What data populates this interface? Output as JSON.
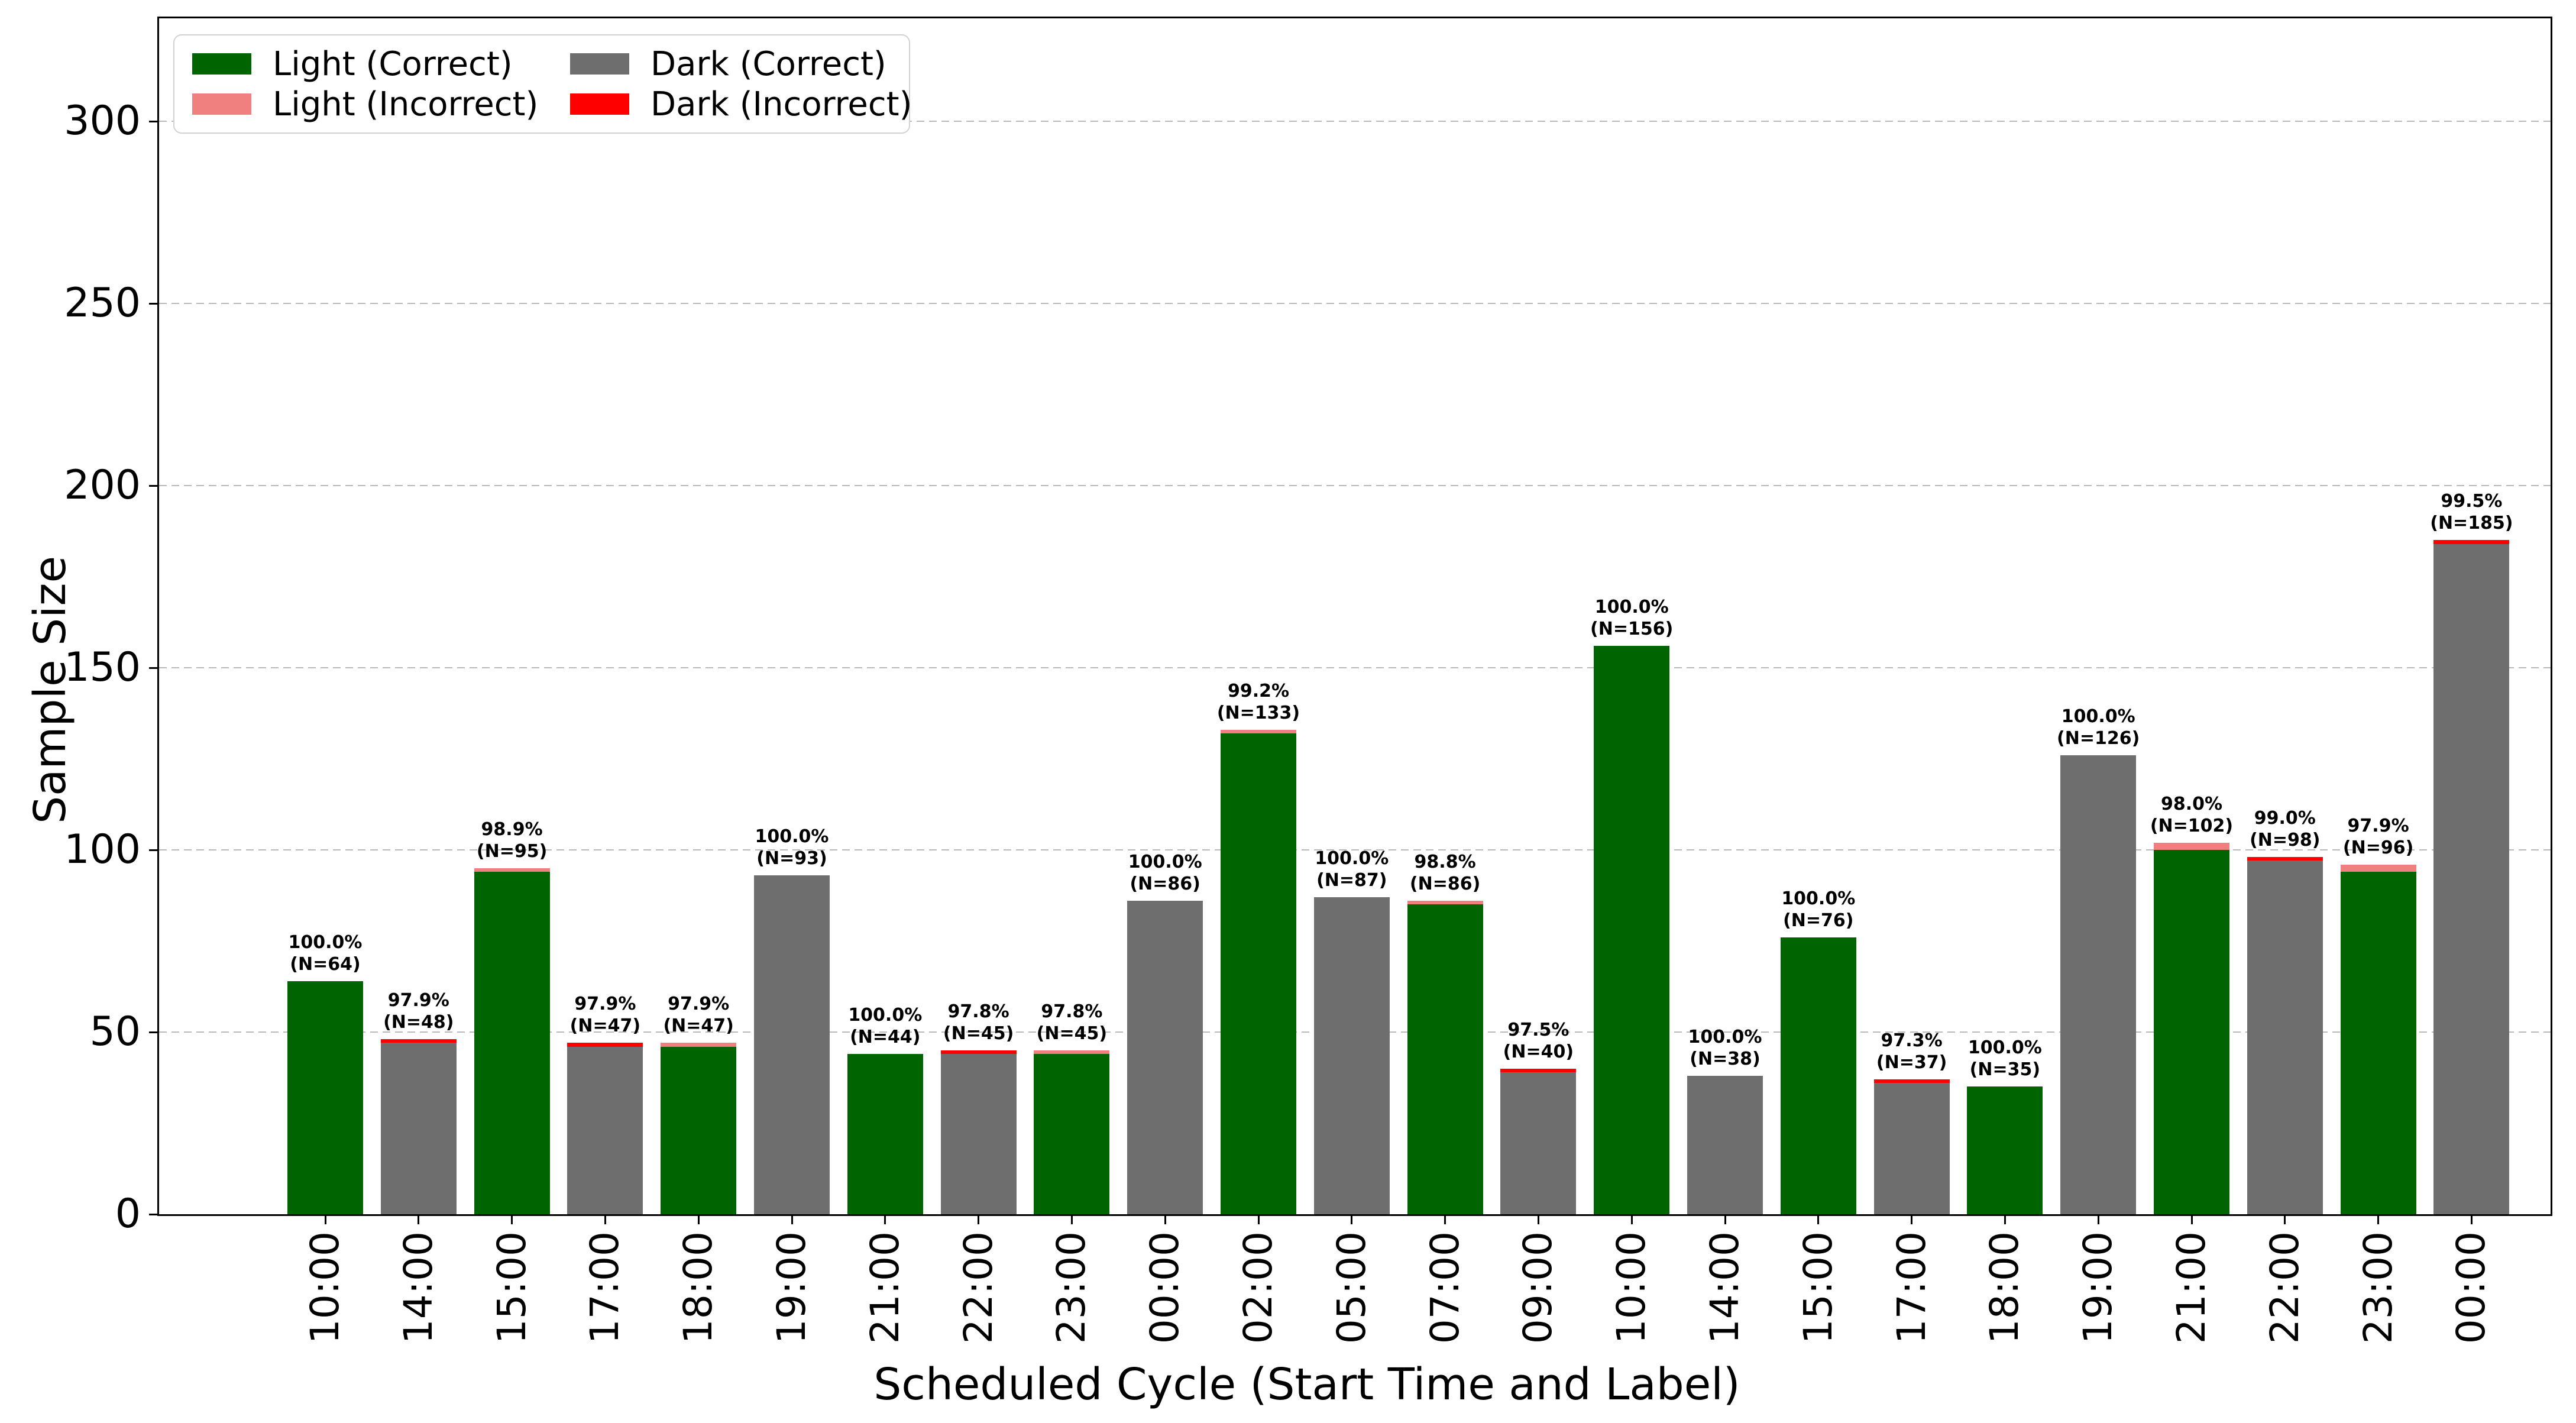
{
  "figure": {
    "xlabel": "Scheduled Cycle (Start Time and Label)",
    "ylabel": "Sample Size",
    "background": "#ffffff"
  },
  "legend": {
    "items": [
      {
        "label": "Light (Correct)",
        "color": "#006400"
      },
      {
        "label": "Light (Incorrect)",
        "color": "#f08080"
      },
      {
        "label": "Dark (Correct)",
        "color": "#6e6e6e"
      },
      {
        "label": "Dark (Incorrect)",
        "color": "#ff0000"
      }
    ]
  },
  "chart_data": {
    "type": "bar",
    "stacked": true,
    "title": "",
    "xlabel": "Scheduled Cycle (Start Time and Label)",
    "ylabel": "Sample Size",
    "ylim": [
      0,
      328
    ],
    "yticks": [
      0,
      50,
      100,
      150,
      200,
      250,
      300
    ],
    "grid": "horizontal-dashed",
    "legend_position": "upper-left",
    "colors": {
      "light_correct": "#006400",
      "light_incorrect": "#f08080",
      "dark_correct": "#6e6e6e",
      "dark_incorrect": "#ff0000",
      "gridline": "#b9b9b9"
    },
    "categories": [
      "10:00",
      "14:00",
      "15:00",
      "17:00",
      "18:00",
      "19:00",
      "21:00",
      "22:00",
      "23:00",
      "00:00",
      "02:00",
      "05:00",
      "07:00",
      "09:00",
      "10:00",
      "14:00",
      "15:00",
      "17:00",
      "18:00",
      "19:00",
      "21:00",
      "22:00",
      "23:00",
      "00:00"
    ],
    "bars": [
      {
        "time": "10:00",
        "theme": "light",
        "total": 64,
        "correct": 64,
        "incorrect": 0,
        "pct_label": "100.0%",
        "n_label": "(N=64)"
      },
      {
        "time": "14:00",
        "theme": "dark",
        "total": 48,
        "correct": 47,
        "incorrect": 1,
        "pct_label": "97.9%",
        "n_label": "(N=48)"
      },
      {
        "time": "15:00",
        "theme": "light",
        "total": 95,
        "correct": 94,
        "incorrect": 1,
        "pct_label": "98.9%",
        "n_label": "(N=95)"
      },
      {
        "time": "17:00",
        "theme": "dark",
        "total": 47,
        "correct": 46,
        "incorrect": 1,
        "pct_label": "97.9%",
        "n_label": "(N=47)"
      },
      {
        "time": "18:00",
        "theme": "light",
        "total": 47,
        "correct": 46,
        "incorrect": 1,
        "pct_label": "97.9%",
        "n_label": "(N=47)"
      },
      {
        "time": "19:00",
        "theme": "dark",
        "total": 93,
        "correct": 93,
        "incorrect": 0,
        "pct_label": "100.0%",
        "n_label": "(N=93)"
      },
      {
        "time": "21:00",
        "theme": "light",
        "total": 44,
        "correct": 44,
        "incorrect": 0,
        "pct_label": "100.0%",
        "n_label": "(N=44)"
      },
      {
        "time": "22:00",
        "theme": "dark",
        "total": 45,
        "correct": 44,
        "incorrect": 1,
        "pct_label": "97.8%",
        "n_label": "(N=45)"
      },
      {
        "time": "23:00",
        "theme": "light",
        "total": 45,
        "correct": 44,
        "incorrect": 1,
        "pct_label": "97.8%",
        "n_label": "(N=45)"
      },
      {
        "time": "00:00",
        "theme": "dark",
        "total": 86,
        "correct": 86,
        "incorrect": 0,
        "pct_label": "100.0%",
        "n_label": "(N=86)"
      },
      {
        "time": "02:00",
        "theme": "light",
        "total": 133,
        "correct": 132,
        "incorrect": 1,
        "pct_label": "99.2%",
        "n_label": "(N=133)"
      },
      {
        "time": "05:00",
        "theme": "dark",
        "total": 87,
        "correct": 87,
        "incorrect": 0,
        "pct_label": "100.0%",
        "n_label": "(N=87)"
      },
      {
        "time": "07:00",
        "theme": "light",
        "total": 86,
        "correct": 85,
        "incorrect": 1,
        "pct_label": "98.8%",
        "n_label": "(N=86)"
      },
      {
        "time": "09:00",
        "theme": "dark",
        "total": 40,
        "correct": 39,
        "incorrect": 1,
        "pct_label": "97.5%",
        "n_label": "(N=40)"
      },
      {
        "time": "10:00",
        "theme": "light",
        "total": 156,
        "correct": 156,
        "incorrect": 0,
        "pct_label": "100.0%",
        "n_label": "(N=156)"
      },
      {
        "time": "14:00",
        "theme": "dark",
        "total": 38,
        "correct": 38,
        "incorrect": 0,
        "pct_label": "100.0%",
        "n_label": "(N=38)"
      },
      {
        "time": "15:00",
        "theme": "light",
        "total": 76,
        "correct": 76,
        "incorrect": 0,
        "pct_label": "100.0%",
        "n_label": "(N=76)"
      },
      {
        "time": "17:00",
        "theme": "dark",
        "total": 37,
        "correct": 36,
        "incorrect": 1,
        "pct_label": "97.3%",
        "n_label": "(N=37)"
      },
      {
        "time": "18:00",
        "theme": "light",
        "total": 35,
        "correct": 35,
        "incorrect": 0,
        "pct_label": "100.0%",
        "n_label": "(N=35)"
      },
      {
        "time": "19:00",
        "theme": "dark",
        "total": 126,
        "correct": 126,
        "incorrect": 0,
        "pct_label": "100.0%",
        "n_label": "(N=126)"
      },
      {
        "time": "21:00",
        "theme": "light",
        "total": 102,
        "correct": 100,
        "incorrect": 2,
        "pct_label": "98.0%",
        "n_label": "(N=102)"
      },
      {
        "time": "22:00",
        "theme": "dark",
        "total": 98,
        "correct": 97,
        "incorrect": 1,
        "pct_label": "99.0%",
        "n_label": "(N=98)"
      },
      {
        "time": "23:00",
        "theme": "light",
        "total": 96,
        "correct": 94,
        "incorrect": 2,
        "pct_label": "97.9%",
        "n_label": "(N=96)"
      },
      {
        "time": "00:00",
        "theme": "dark",
        "total": 185,
        "correct": 184,
        "incorrect": 1,
        "pct_label": "99.5%",
        "n_label": "(N=185)"
      }
    ]
  }
}
